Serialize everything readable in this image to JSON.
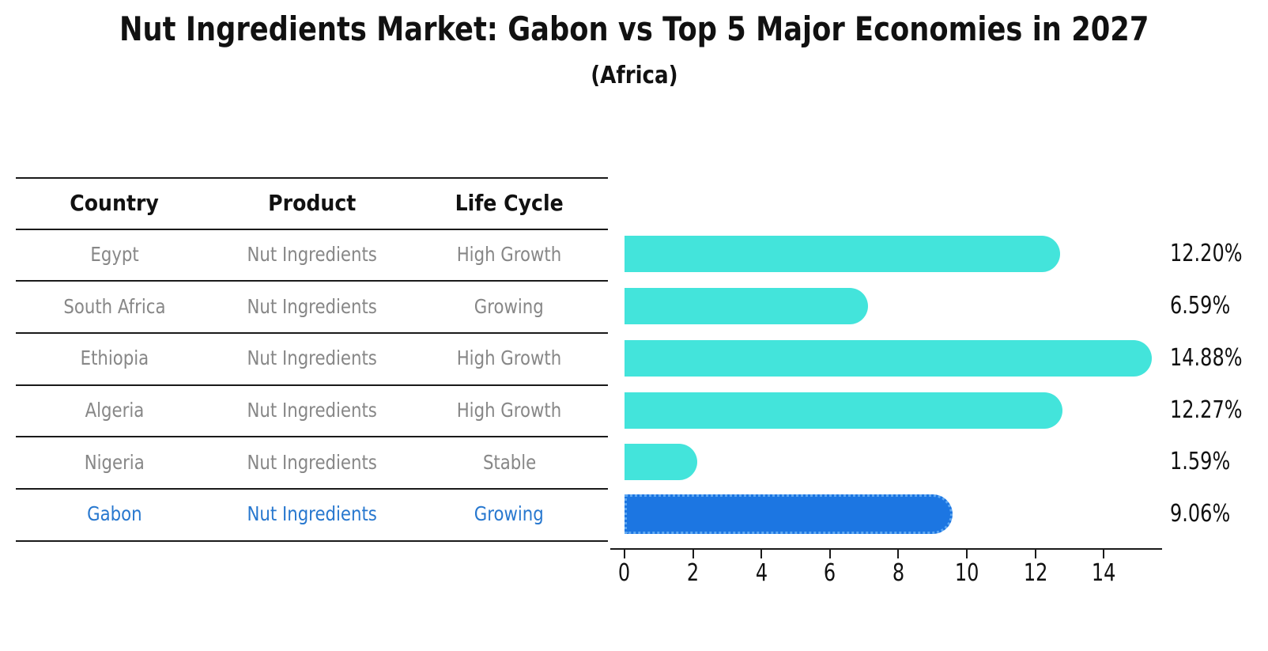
{
  "title": "Nut Ingredients Market: Gabon vs Top 5 Major Economies in 2027",
  "subtitle": "(Africa)",
  "table": {
    "headers": [
      "Country",
      "Product",
      "Life Cycle"
    ],
    "rows": [
      {
        "country": "Egypt",
        "product": "Nut Ingredients",
        "life_cycle": "High Growth",
        "highlight": false
      },
      {
        "country": "South Africa",
        "product": "Nut Ingredients",
        "life_cycle": "Growing",
        "highlight": false
      },
      {
        "country": "Ethiopia",
        "product": "Nut Ingredients",
        "life_cycle": "High Growth",
        "highlight": false
      },
      {
        "country": "Algeria",
        "product": "Nut Ingredients",
        "life_cycle": "High Growth",
        "highlight": false
      },
      {
        "country": "Nigeria",
        "product": "Nut Ingredients",
        "life_cycle": "Stable",
        "highlight": false
      },
      {
        "country": "Gabon",
        "product": "Nut Ingredients",
        "life_cycle": "Growing",
        "highlight": true
      }
    ]
  },
  "chart_data": {
    "type": "bar",
    "orientation": "horizontal",
    "title": "Nut Ingredients Market: Gabon vs Top 5 Major Economies in 2027",
    "subtitle": "(Africa)",
    "categories": [
      "Egypt",
      "South Africa",
      "Ethiopia",
      "Algeria",
      "Nigeria",
      "Gabon"
    ],
    "values": [
      12.2,
      6.59,
      14.88,
      12.27,
      1.59,
      9.06
    ],
    "value_labels": [
      "12.20%",
      "6.59%",
      "14.88%",
      "12.27%",
      "1.59%",
      "9.06%"
    ],
    "highlight_category": "Gabon",
    "x_ticks": [
      0,
      2,
      4,
      6,
      8,
      10,
      12,
      14
    ],
    "xlim": [
      0,
      15.7
    ],
    "grid": false,
    "legend": false,
    "colors": {
      "default_bar": "#43E4DB",
      "highlight_bar": "#1C76E2",
      "highlight_bar_border": "#5FA8F2",
      "highlight_text": "#2878CF",
      "row_text": "#878787",
      "axis_and_lines": "#1a1a1a",
      "value_text": "#111111"
    }
  }
}
